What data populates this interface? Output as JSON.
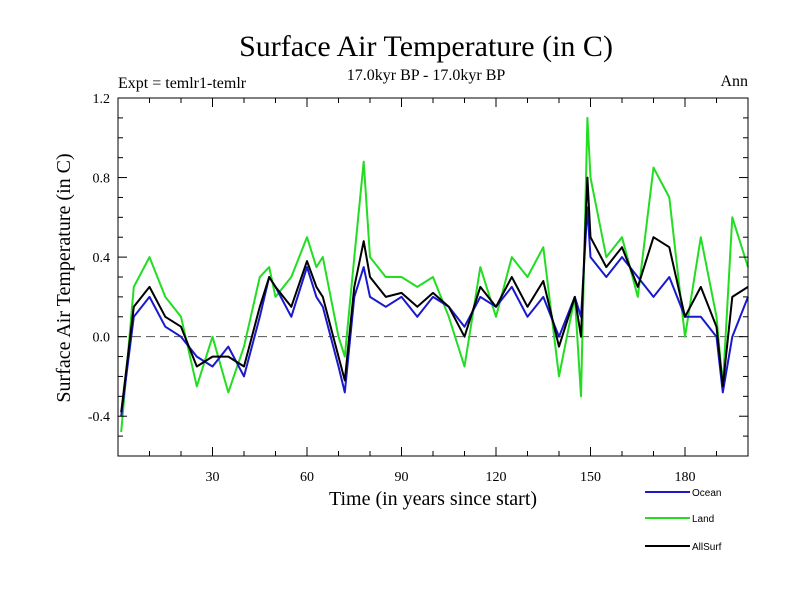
{
  "chart_data": {
    "type": "line",
    "title": "Surface Air Temperature (in C)",
    "subtitle": "17.0kyr BP - 17.0kyr BP",
    "expt_label": "Expt = temlr1-temlr",
    "period_label": "Ann",
    "xlabel": "Time (in years since start)",
    "ylabel": "Surface Air Temperature (in C)",
    "xlim": [
      0,
      200
    ],
    "ylim": [
      -0.6,
      1.2
    ],
    "xticks": [
      30,
      60,
      90,
      120,
      150,
      180
    ],
    "yticks": [
      -0.4,
      0.0,
      0.4,
      0.8,
      1.2
    ],
    "ytick_labels": [
      "-0.4",
      "0.0",
      "0.4",
      "0.8",
      "1.2"
    ],
    "zero_line": "dashed",
    "legend_position": "bottom-right",
    "x": [
      1,
      5,
      10,
      15,
      20,
      25,
      30,
      35,
      40,
      45,
      48,
      50,
      55,
      60,
      63,
      65,
      70,
      72,
      75,
      78,
      80,
      85,
      90,
      95,
      100,
      105,
      110,
      115,
      120,
      125,
      130,
      135,
      140,
      145,
      147,
      149,
      150,
      155,
      160,
      165,
      170,
      175,
      180,
      185,
      190,
      192,
      195,
      200
    ],
    "series": [
      {
        "name": "Ocean",
        "color": "#1a1acc",
        "values": [
          -0.4,
          0.1,
          0.2,
          0.05,
          0.0,
          -0.1,
          -0.15,
          -0.05,
          -0.2,
          0.1,
          0.3,
          0.25,
          0.1,
          0.35,
          0.2,
          0.15,
          -0.15,
          -0.28,
          0.2,
          0.35,
          0.2,
          0.15,
          0.2,
          0.1,
          0.2,
          0.15,
          0.05,
          0.2,
          0.15,
          0.25,
          0.1,
          0.2,
          0.0,
          0.2,
          0.1,
          0.65,
          0.4,
          0.3,
          0.4,
          0.3,
          0.2,
          0.3,
          0.1,
          0.1,
          0.0,
          -0.28,
          0.0,
          0.2
        ]
      },
      {
        "name": "Land",
        "color": "#22dd22",
        "values": [
          -0.48,
          0.25,
          0.4,
          0.2,
          0.1,
          -0.25,
          0.0,
          -0.28,
          -0.05,
          0.3,
          0.35,
          0.2,
          0.3,
          0.5,
          0.35,
          0.4,
          0.0,
          -0.1,
          0.4,
          0.88,
          0.4,
          0.3,
          0.3,
          0.25,
          0.3,
          0.1,
          -0.15,
          0.35,
          0.1,
          0.4,
          0.3,
          0.45,
          -0.2,
          0.2,
          -0.3,
          1.1,
          0.8,
          0.4,
          0.5,
          0.2,
          0.85,
          0.7,
          0.0,
          0.5,
          0.1,
          -0.25,
          0.6,
          0.35
        ]
      },
      {
        "name": "AllSurf",
        "color": "#000000",
        "values": [
          -0.38,
          0.15,
          0.25,
          0.1,
          0.05,
          -0.15,
          -0.1,
          -0.1,
          -0.15,
          0.15,
          0.3,
          0.25,
          0.15,
          0.38,
          0.25,
          0.2,
          -0.1,
          -0.22,
          0.25,
          0.48,
          0.3,
          0.2,
          0.22,
          0.15,
          0.22,
          0.15,
          0.0,
          0.25,
          0.15,
          0.3,
          0.15,
          0.28,
          -0.05,
          0.2,
          0.0,
          0.8,
          0.5,
          0.35,
          0.45,
          0.25,
          0.5,
          0.45,
          0.1,
          0.25,
          0.05,
          -0.25,
          0.2,
          0.25
        ]
      }
    ]
  },
  "colors": {
    "axis": "#000000",
    "background": "#ffffff"
  }
}
